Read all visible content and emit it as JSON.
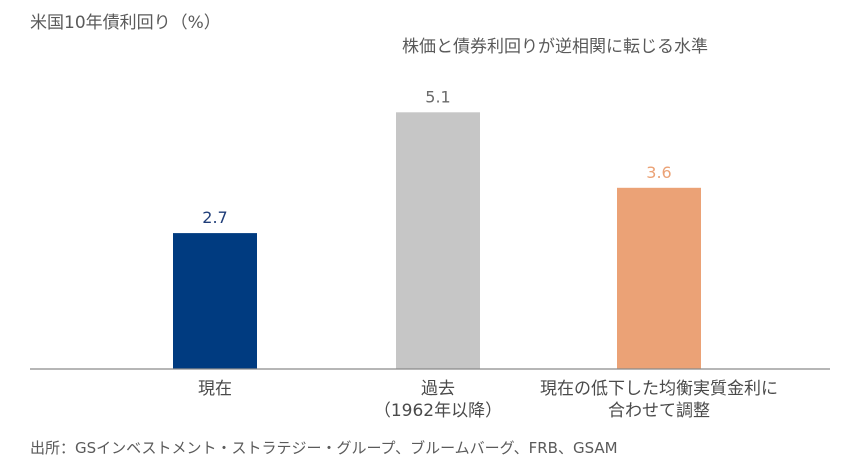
{
  "chart_data": {
    "type": "bar",
    "title": "株価と債券利回りが逆相関に転じる水準",
    "ylabel": "米国10年債利回り（%）",
    "xlabel": "",
    "categories": [
      [
        "現在"
      ],
      [
        "過去",
        "（1962年以降）"
      ],
      [
        "現在の低下した均衡実質金利に",
        "合わせて調整"
      ]
    ],
    "values": [
      2.7,
      5.1,
      3.6
    ],
    "value_labels": [
      "2.7",
      "5.1",
      "3.6"
    ],
    "colors": [
      "#003b80",
      "#c6c6c6",
      "#eba276"
    ],
    "label_colors": [
      "#1f3d78",
      "#6a6a6a",
      "#eba276"
    ],
    "ylim": [
      0,
      6.0
    ],
    "grid": false,
    "legend": "none"
  },
  "source": "出所：GSインベストメント・ストラテジー・グループ、ブルームバーグ、FRB、GSAM"
}
